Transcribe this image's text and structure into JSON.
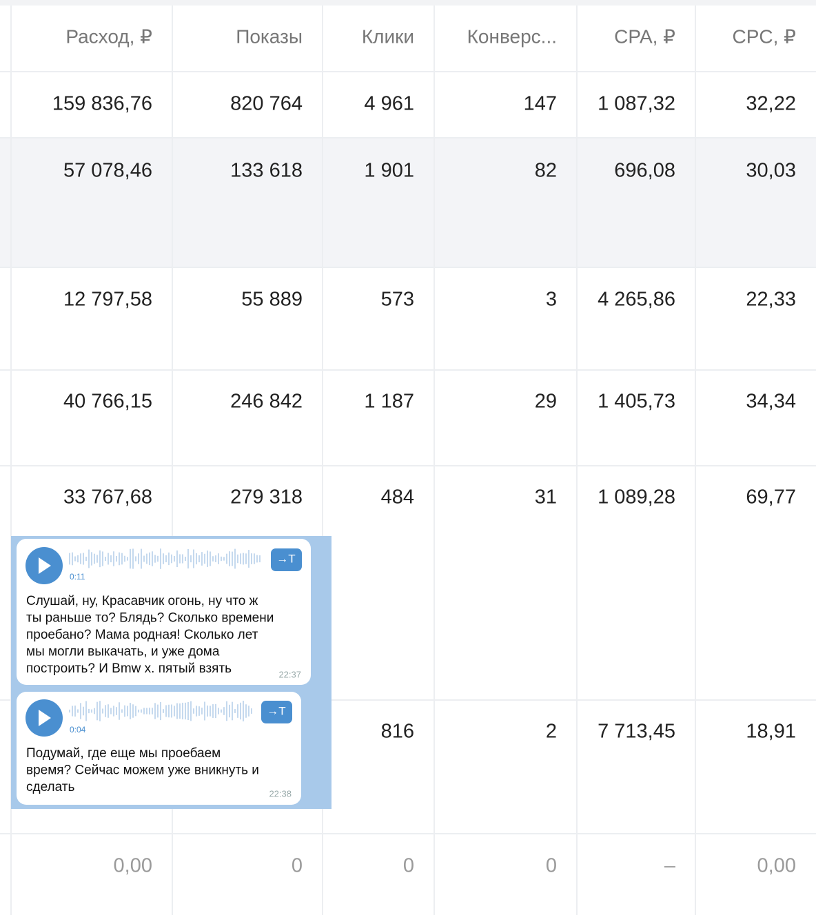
{
  "table": {
    "headers": [
      "Расход, ₽",
      "Показы",
      "Клики",
      "Конверс...",
      "CPA, ₽",
      "CPC, ₽"
    ],
    "rows": [
      [
        "159 836,76",
        "820 764",
        "4 961",
        "147",
        "1 087,32",
        "32,22"
      ],
      [
        "57 078,46",
        "133 618",
        "1 901",
        "82",
        "696,08",
        "30,03"
      ],
      [
        "12 797,58",
        "55 889",
        "573",
        "3",
        "4 265,86",
        "22,33"
      ],
      [
        "40 766,15",
        "246 842",
        "1 187",
        "29",
        "1 405,73",
        "34,34"
      ],
      [
        "33 767,68",
        "279 318",
        "484",
        "31",
        "1 089,28",
        "69,77"
      ],
      [
        null,
        null,
        "816",
        "2",
        "7 713,45",
        "18,91"
      ],
      [
        "0,00",
        "0",
        "0",
        "0",
        "–",
        "0,00"
      ]
    ]
  },
  "messages": [
    {
      "duration": "0:11",
      "button": "→T",
      "lines": [
        "Слушай, ну, Красавчик огонь, ну что ж",
        "ты раньше то? Блядь? Сколько времени",
        "проебано? Мама родная! Сколько лет",
        "мы могли выкачать, и уже дома",
        "построить? И Bmw x. пятый взять"
      ],
      "time": "22:37"
    },
    {
      "duration": "0:04",
      "button": "→T",
      "lines": [
        "Подумай, где еще мы проебаем",
        "время? Сейчас можем уже вникнуть и",
        "сделать"
      ],
      "time": "22:38"
    }
  ]
}
